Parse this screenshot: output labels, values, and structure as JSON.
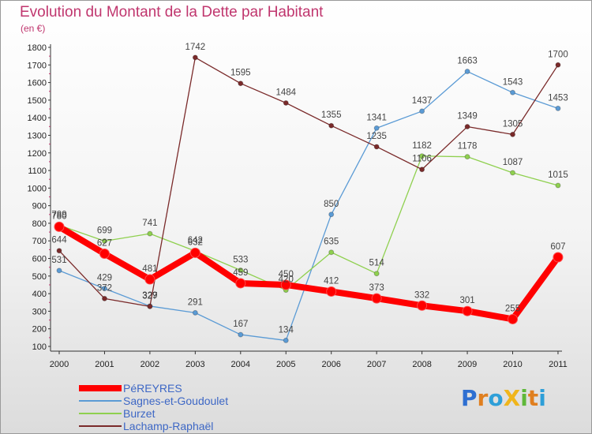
{
  "title": "Evolution du Montant de la Dette par Habitant",
  "unit_label": "(en €)",
  "logo": {
    "text": "ProXiti",
    "colors": [
      "#2e6fd1",
      "#e07f1f",
      "#2e9fd8",
      "#f0b51b",
      "#5fb83a",
      "#e07f1f",
      "#2e9fd8"
    ]
  },
  "chart_data": {
    "type": "line",
    "title": "Evolution du Montant de la Dette par Habitant",
    "ylabel": "(en €)",
    "x": [
      "2000",
      "2001",
      "2002",
      "2003",
      "2004",
      "2005",
      "2006",
      "2007",
      "2008",
      "2009",
      "2010",
      "2011"
    ],
    "ylim": [
      100,
      1800
    ],
    "yticks": [
      100,
      200,
      300,
      400,
      500,
      600,
      700,
      800,
      900,
      1000,
      1100,
      1200,
      1300,
      1400,
      1500,
      1600,
      1700,
      1800
    ],
    "grid": false,
    "legend_position": "bottom-left",
    "series": [
      {
        "name": "PéREYRES",
        "color": "#ff0000",
        "values": [
          780,
          627,
          481,
          632,
          459,
          450,
          412,
          373,
          332,
          301,
          255,
          607
        ]
      },
      {
        "name": "Sagnes-et-Goudoulet",
        "color": "#5b9bd5",
        "values": [
          531,
          429,
          329,
          291,
          167,
          134,
          850,
          1341,
          1437,
          1663,
          1543,
          1453
        ]
      },
      {
        "name": "Burzet",
        "color": "#8fd04f",
        "values": [
          789,
          699,
          741,
          642,
          533,
          420,
          635,
          514,
          1182,
          1178,
          1087,
          1015
        ]
      },
      {
        "name": "Lachamp-Raphaël",
        "color": "#7a2a2a",
        "values": [
          644,
          372,
          327,
          1742,
          1595,
          1484,
          1355,
          1235,
          1106,
          1349,
          1305,
          1700
        ]
      }
    ]
  }
}
